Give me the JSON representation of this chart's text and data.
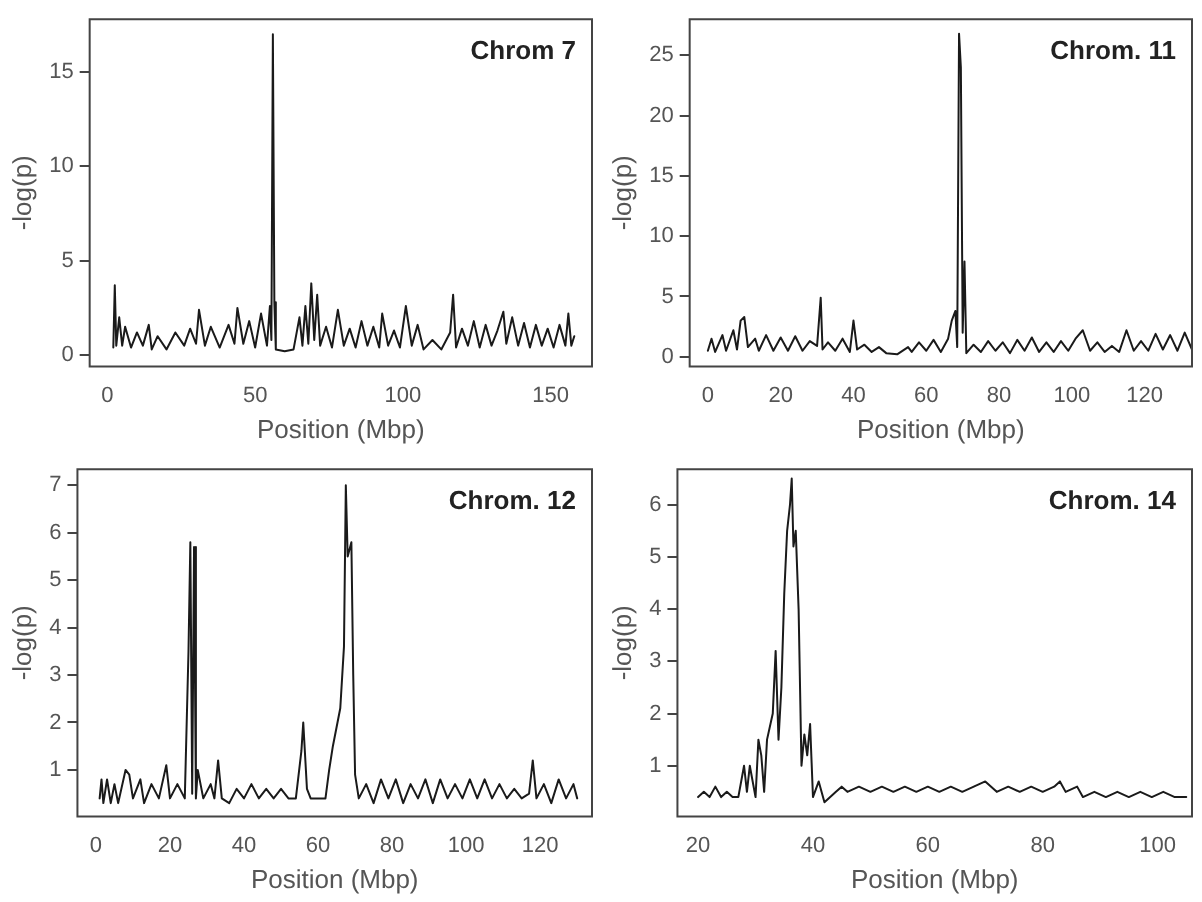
{
  "chart_data": [
    {
      "type": "line",
      "title": "Chrom 7",
      "xlabel": "Position (Mbp)",
      "ylabel": "-log(p)",
      "xlim": [
        -6,
        164
      ],
      "xticks": [
        0,
        50,
        100,
        150
      ],
      "ylim": [
        -0.6,
        17.8
      ],
      "yticks": [
        0,
        5,
        10,
        15
      ],
      "grid": false,
      "x": [
        2,
        2.5,
        3,
        4,
        5,
        6,
        8,
        10,
        12,
        14,
        15,
        17,
        20,
        23,
        26,
        28,
        30,
        31,
        33,
        35,
        38,
        41,
        43,
        44,
        46,
        48,
        50,
        52,
        54,
        55,
        55.5,
        56,
        56.5,
        57,
        60,
        63,
        65,
        66,
        67,
        68,
        69,
        70,
        71,
        72,
        74,
        76,
        78,
        80,
        82,
        84,
        86,
        88,
        90,
        92,
        93,
        95,
        97,
        99,
        101,
        103,
        105,
        107,
        110,
        113,
        116,
        117,
        118,
        120,
        122,
        124,
        126,
        128,
        130,
        132,
        134,
        135,
        137,
        139,
        141,
        143,
        145,
        147,
        149,
        151,
        153,
        155,
        156,
        157,
        158
      ],
      "series": [
        {
          "color": "#1a1a1a",
          "values": [
            0.4,
            3.7,
            0.5,
            2.0,
            0.5,
            1.5,
            0.4,
            1.2,
            0.5,
            1.6,
            0.3,
            1.0,
            0.3,
            1.2,
            0.5,
            1.4,
            0.6,
            2.4,
            0.5,
            1.5,
            0.4,
            1.6,
            0.6,
            2.5,
            0.6,
            1.8,
            0.4,
            2.2,
            0.5,
            2.6,
            0.8,
            17.0,
            2.8,
            0.3,
            0.2,
            0.3,
            2.0,
            0.5,
            2.6,
            0.6,
            3.8,
            0.8,
            3.2,
            0.5,
            1.5,
            0.4,
            2.4,
            0.5,
            1.4,
            0.4,
            1.8,
            0.5,
            1.5,
            0.4,
            2.2,
            0.5,
            1.3,
            0.4,
            2.6,
            0.5,
            1.6,
            0.3,
            0.8,
            0.3,
            1.2,
            3.2,
            0.4,
            1.4,
            0.5,
            1.8,
            0.4,
            1.6,
            0.5,
            1.3,
            2.3,
            0.6,
            2.0,
            0.5,
            1.7,
            0.4,
            1.6,
            0.5,
            1.4,
            0.4,
            1.6,
            0.5,
            2.2,
            0.5,
            1.0
          ]
        }
      ]
    },
    {
      "type": "line",
      "title": "Chrom. 11",
      "xlabel": "Position (Mbp)",
      "ylabel": "-log(p)",
      "xlim": [
        -5,
        133
      ],
      "xticks": [
        0,
        20,
        40,
        60,
        80,
        100,
        120
      ],
      "ylim": [
        -0.8,
        28.0
      ],
      "yticks": [
        0,
        5,
        10,
        15,
        20,
        25
      ],
      "grid": false,
      "x": [
        0,
        1,
        2,
        4,
        5,
        7,
        8,
        9,
        10,
        11,
        13,
        14,
        16,
        18,
        20,
        22,
        24,
        26,
        28,
        30,
        31,
        31.5,
        33,
        35,
        37,
        39,
        40,
        41,
        43,
        45,
        47,
        49,
        52,
        55,
        56,
        58,
        60,
        62,
        64,
        66,
        67,
        68,
        68.5,
        69,
        69.5,
        70,
        70.5,
        71,
        73,
        75,
        77,
        79,
        81,
        83,
        85,
        87,
        89,
        91,
        93,
        95,
        97,
        99,
        101,
        103,
        105,
        107,
        109,
        111,
        113,
        115,
        117,
        119,
        121,
        123,
        125,
        127,
        129,
        131,
        133
      ],
      "series": [
        {
          "color": "#1a1a1a",
          "values": [
            0.5,
            1.5,
            0.4,
            1.8,
            0.5,
            2.2,
            0.6,
            3.0,
            3.3,
            0.8,
            1.5,
            0.5,
            1.8,
            0.5,
            1.6,
            0.5,
            1.7,
            0.5,
            1.3,
            0.9,
            4.9,
            0.6,
            1.2,
            0.5,
            1.5,
            0.4,
            3.0,
            0.6,
            1.0,
            0.4,
            0.8,
            0.3,
            0.2,
            0.8,
            0.4,
            1.2,
            0.5,
            1.4,
            0.4,
            1.5,
            3.0,
            3.8,
            0.8,
            26.8,
            24.0,
            2.0,
            7.9,
            0.3,
            1.0,
            0.4,
            1.3,
            0.5,
            1.2,
            0.3,
            1.4,
            0.5,
            1.6,
            0.4,
            1.2,
            0.4,
            1.3,
            0.5,
            1.5,
            2.2,
            0.5,
            1.2,
            0.4,
            0.9,
            0.4,
            2.2,
            0.5,
            1.3,
            0.5,
            1.9,
            0.6,
            1.8,
            0.5,
            2.0,
            0.6
          ]
        }
      ]
    },
    {
      "type": "line",
      "title": "Chrom. 12",
      "xlabel": "Position (Mbp)",
      "ylabel": "-log(p)",
      "xlim": [
        -5,
        134
      ],
      "xticks": [
        0,
        20,
        40,
        60,
        80,
        100,
        120
      ],
      "ylim": [
        0.02,
        7.34
      ],
      "yticks": [
        1,
        2,
        3,
        4,
        5,
        6,
        7
      ],
      "grid": false,
      "x": [
        1,
        1.5,
        2,
        3,
        4,
        5,
        6,
        8,
        9,
        10,
        12,
        13,
        15,
        17,
        19,
        20,
        22,
        24,
        25,
        25.5,
        26,
        26.5,
        27,
        27.5,
        29,
        31,
        32,
        33,
        34,
        36,
        38,
        40,
        42,
        44,
        46,
        48,
        50,
        52,
        54,
        55.5,
        56,
        57,
        58,
        62,
        63,
        64,
        65,
        66,
        67,
        67.5,
        68,
        69,
        69.5,
        70,
        71,
        73,
        75,
        77,
        79,
        81,
        83,
        85,
        87,
        89,
        91,
        93,
        95,
        97,
        99,
        101,
        103,
        105,
        107,
        109,
        111,
        113,
        115,
        117,
        118,
        119,
        121,
        123,
        125,
        127,
        129,
        130
      ],
      "series": [
        {
          "color": "#1a1a1a",
          "values": [
            0.4,
            0.8,
            0.3,
            0.8,
            0.3,
            0.7,
            0.3,
            1.0,
            0.9,
            0.4,
            0.8,
            0.3,
            0.7,
            0.4,
            1.1,
            0.4,
            0.7,
            0.4,
            3.5,
            5.8,
            0.5,
            5.7,
            0.4,
            1.0,
            0.4,
            0.7,
            0.4,
            1.2,
            0.4,
            0.3,
            0.6,
            0.4,
            0.7,
            0.4,
            0.6,
            0.4,
            0.6,
            0.4,
            0.4,
            1.4,
            2.0,
            0.6,
            0.4,
            0.4,
            1.0,
            1.5,
            1.9,
            2.3,
            3.6,
            7.0,
            5.5,
            5.8,
            3.0,
            0.9,
            0.4,
            0.7,
            0.3,
            0.8,
            0.4,
            0.8,
            0.3,
            0.7,
            0.4,
            0.8,
            0.3,
            0.8,
            0.4,
            0.7,
            0.4,
            0.8,
            0.4,
            0.8,
            0.4,
            0.7,
            0.4,
            0.6,
            0.4,
            0.5,
            1.2,
            0.4,
            0.7,
            0.3,
            0.8,
            0.4,
            0.7,
            0.4
          ]
        }
      ]
    },
    {
      "type": "line",
      "title": "Chrom. 14",
      "xlabel": "Position (Mbp)",
      "ylabel": "-log(p)",
      "xlim": [
        16.4,
        106
      ],
      "xticks": [
        20,
        40,
        60,
        80,
        100
      ],
      "ylim": [
        0.03,
        6.68
      ],
      "yticks": [
        1,
        2,
        3,
        4,
        5,
        6
      ],
      "grid": false,
      "x": [
        20,
        21,
        22,
        23,
        24,
        25,
        26,
        27,
        28,
        28.5,
        29,
        30,
        30.5,
        31,
        31.5,
        32,
        33,
        33.5,
        34,
        34.5,
        35,
        35.5,
        36,
        36.3,
        36.6,
        37,
        37.5,
        38,
        38.5,
        39,
        39.5,
        40,
        41,
        42,
        44,
        45,
        46,
        48,
        50,
        52,
        54,
        56,
        58,
        60,
        62,
        64,
        66,
        68,
        70,
        72,
        74,
        76,
        78,
        80,
        82,
        83,
        84,
        86,
        87,
        89,
        91,
        93,
        95,
        97,
        99,
        101,
        103,
        105
      ],
      "series": [
        {
          "color": "#1a1a1a",
          "values": [
            0.4,
            0.5,
            0.4,
            0.6,
            0.4,
            0.5,
            0.4,
            0.4,
            1.0,
            0.5,
            1.0,
            0.4,
            1.5,
            1.2,
            0.5,
            1.5,
            2.0,
            3.2,
            1.5,
            2.5,
            4.3,
            5.5,
            6.0,
            6.5,
            5.2,
            5.5,
            4.0,
            1.0,
            1.6,
            1.2,
            1.8,
            0.4,
            0.7,
            0.3,
            0.5,
            0.6,
            0.5,
            0.6,
            0.5,
            0.6,
            0.5,
            0.6,
            0.5,
            0.6,
            0.5,
            0.6,
            0.5,
            0.6,
            0.7,
            0.5,
            0.6,
            0.5,
            0.6,
            0.5,
            0.6,
            0.7,
            0.5,
            0.6,
            0.4,
            0.5,
            0.4,
            0.5,
            0.4,
            0.5,
            0.4,
            0.5,
            0.4,
            0.4
          ]
        }
      ]
    }
  ]
}
